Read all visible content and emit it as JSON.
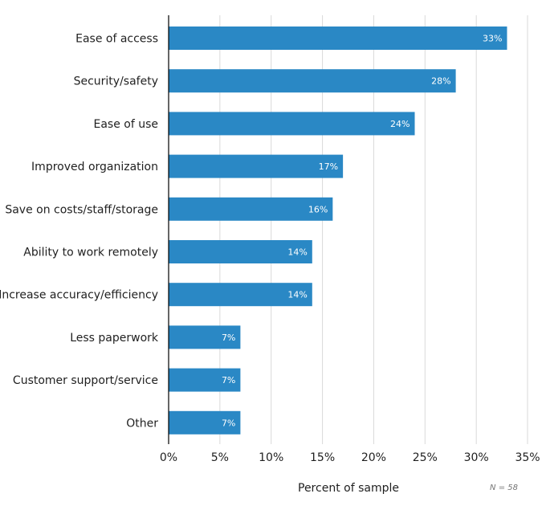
{
  "chart_data": {
    "type": "bar",
    "orientation": "horizontal",
    "title": "",
    "categories": [
      "Ease of access",
      "Security/safety",
      "Ease of use",
      "Improved organization",
      "Save on costs/staff/storage",
      "Ability to work remotely",
      "Increase accuracy/efficiency",
      "Less paperwork",
      "Customer support/service",
      "Other"
    ],
    "values": [
      33,
      28,
      24,
      17,
      16,
      14,
      14,
      7,
      7,
      7
    ],
    "value_labels": [
      "33%",
      "28%",
      "24%",
      "17%",
      "16%",
      "14%",
      "14%",
      "7%",
      "7%",
      "7%"
    ],
    "xlabel": "Percent of sample",
    "ylabel": "",
    "xlim": [
      0,
      35
    ],
    "xticks": [
      0,
      5,
      10,
      15,
      20,
      25,
      30,
      35
    ],
    "xtick_labels": [
      "0%",
      "5%",
      "10%",
      "15%",
      "20%",
      "25%",
      "30%",
      "35%"
    ],
    "grid": "vertical",
    "legend": "none",
    "bar_color": "#2a88c5",
    "note": "N = 58"
  }
}
